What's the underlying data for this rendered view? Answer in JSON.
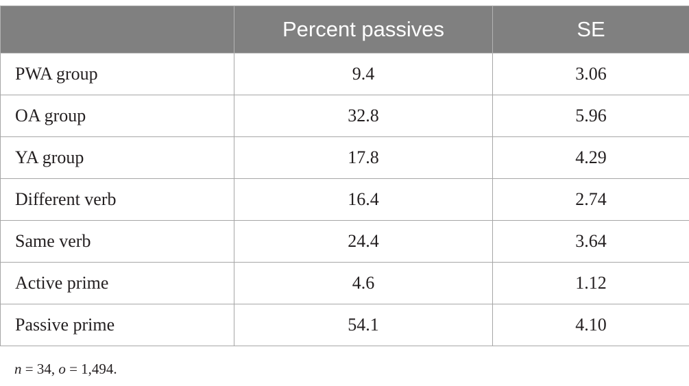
{
  "table": {
    "headers": [
      "",
      "Percent passives",
      "SE"
    ],
    "rows": [
      {
        "label": "PWA group",
        "percent": "9.4",
        "se": "3.06"
      },
      {
        "label": "OA group",
        "percent": "32.8",
        "se": "5.96"
      },
      {
        "label": "YA group",
        "percent": "17.8",
        "se": "4.29"
      },
      {
        "label": "Different verb",
        "percent": "16.4",
        "se": "2.74"
      },
      {
        "label": "Same verb",
        "percent": "24.4",
        "se": "3.64"
      },
      {
        "label": "Active prime",
        "percent": "4.6",
        "se": "1.12"
      },
      {
        "label": "Passive prime",
        "percent": "54.1",
        "se": "4.10"
      }
    ]
  },
  "footnote": {
    "n_var": "n",
    "n_value": " = 34, ",
    "o_var": "o",
    "o_value": " = 1,494."
  }
}
